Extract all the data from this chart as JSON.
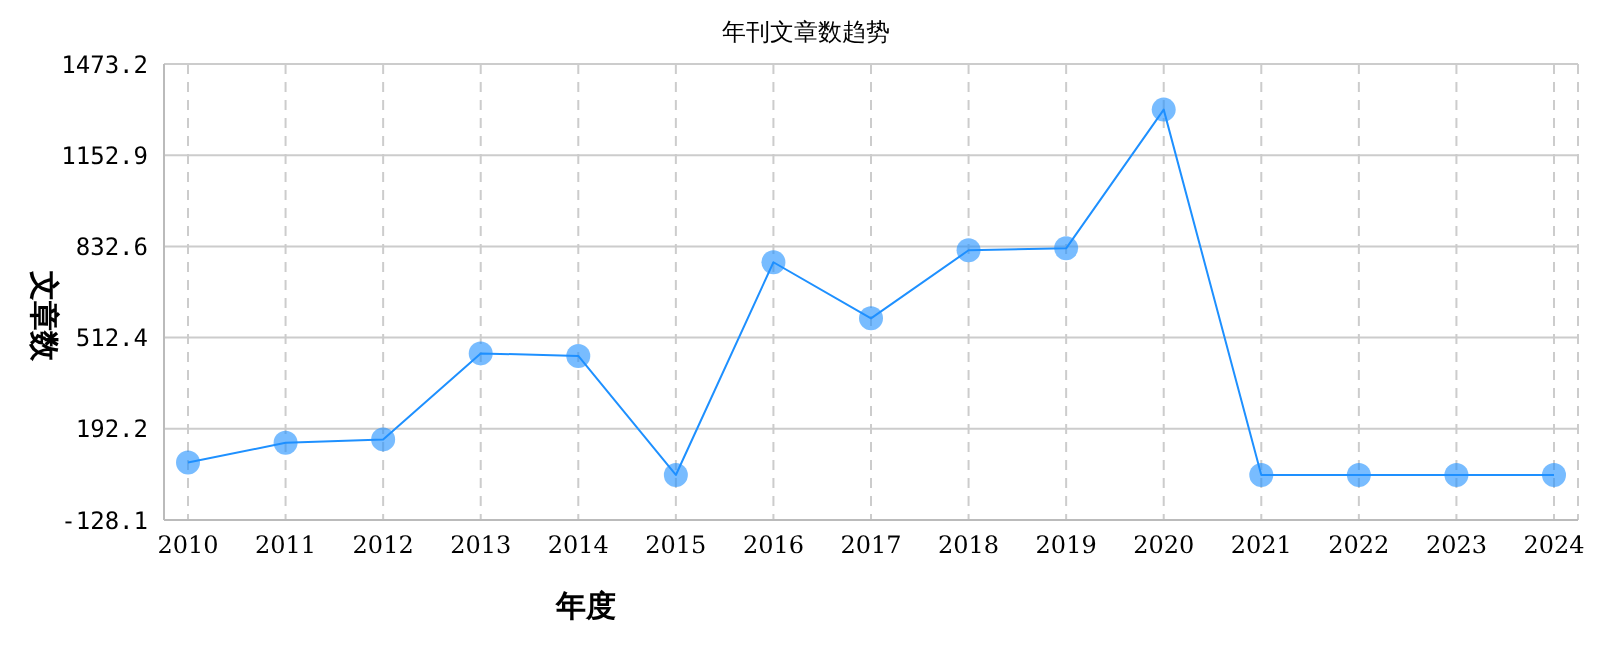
{
  "chart_data": {
    "type": "line",
    "title": "年刊文章数趋势",
    "xlabel": "年度",
    "ylabel": "文章数",
    "categories": [
      "2010",
      "2011",
      "2012",
      "2013",
      "2014",
      "2015",
      "2016",
      "2017",
      "2018",
      "2019",
      "2020",
      "2021",
      "2022",
      "2023",
      "2024"
    ],
    "series": [
      {
        "color": "#1e90ff",
        "values": [
          74,
          143,
          155,
          457,
          448,
          30,
          777,
          580,
          819,
          826,
          1313,
          30,
          30,
          30,
          30
        ]
      }
    ],
    "ylim": [
      -128.1,
      1473.2
    ],
    "yticks": [
      -128.1,
      192.2,
      512.4,
      832.6,
      1152.9,
      1473.2
    ],
    "grid": true,
    "marker": "circle",
    "line_style": "solid"
  }
}
